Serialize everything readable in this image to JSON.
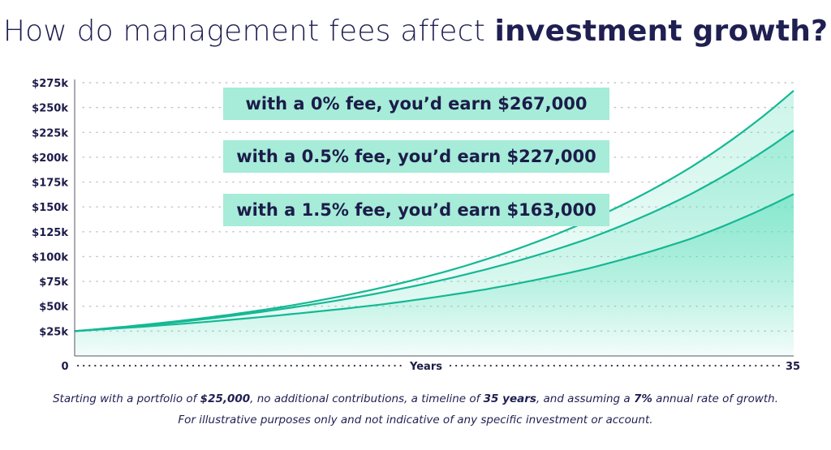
{
  "title": {
    "regular": "How do management fees affect ",
    "bold": "investment growth?"
  },
  "callouts": [
    "with a 0% fee, you’d earn $267,000",
    "with a 0.5% fee, you’d earn $227,000",
    "with a 1.5% fee, you’d earn $163,000"
  ],
  "footnote": {
    "line1": [
      {
        "text": "Starting with a portfolio of ",
        "bold": false
      },
      {
        "text": "$25,000",
        "bold": true
      },
      {
        "text": ", no additional contributions, a timeline of ",
        "bold": false
      },
      {
        "text": "35 years",
        "bold": true
      },
      {
        "text": ", and assuming a ",
        "bold": false
      },
      {
        "text": "7%",
        "bold": true
      },
      {
        "text": " annual rate of growth.",
        "bold": false
      }
    ],
    "line2": "For illustrative purposes only and not indicative of any specific investment or account."
  },
  "colors": {
    "line": "#14b894",
    "fill": "#5ddfbc",
    "grid": "#c4c4cc",
    "text": "#1c1c4a",
    "callout_bg": "#a6ecd8"
  },
  "chart_data": {
    "type": "area",
    "xlabel": "Years",
    "x_tick_labels": [
      "0",
      "35"
    ],
    "xlim": [
      0,
      35
    ],
    "ylim": [
      0,
      275000
    ],
    "y_ticks": [
      25000,
      50000,
      75000,
      100000,
      125000,
      150000,
      175000,
      200000,
      225000,
      250000,
      275000
    ],
    "y_tick_labels": [
      "$25k",
      "$50k",
      "$75k",
      "$100k",
      "$125k",
      "$150k",
      "$175k",
      "$200k",
      "$225k",
      "$250k",
      "$275k"
    ],
    "grid": true,
    "x": [
      0,
      5,
      10,
      15,
      20,
      25,
      30,
      35
    ],
    "series": [
      {
        "values": [
          25000,
          35000,
          49000,
          69000,
          97000,
          136000,
          190000,
          267000
        ]
      },
      {
        "values": [
          25000,
          34000,
          47000,
          64000,
          87000,
          118000,
          163000,
          227000
        ]
      },
      {
        "values": [
          25000,
          32000,
          41000,
          52000,
          67000,
          88000,
          118000,
          163000
        ]
      }
    ]
  }
}
